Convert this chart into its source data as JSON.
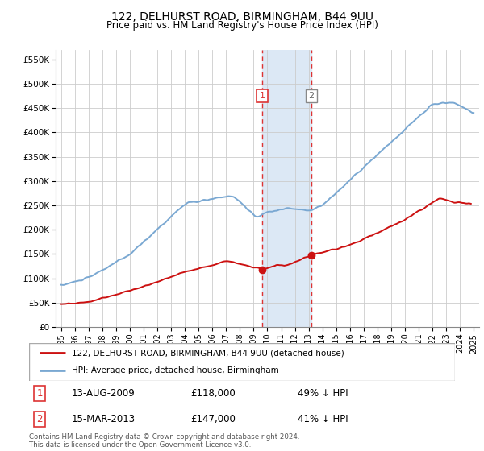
{
  "title": "122, DELHURST ROAD, BIRMINGHAM, B44 9UU",
  "subtitle": "Price paid vs. HM Land Registry's House Price Index (HPI)",
  "hpi_color": "#7aa8d2",
  "price_color": "#cc1111",
  "highlight_color": "#dce8f5",
  "vline_color": "#dd3333",
  "marker_color": "#cc1111",
  "ylim": [
    0,
    570000
  ],
  "yticks": [
    0,
    50000,
    100000,
    150000,
    200000,
    250000,
    300000,
    350000,
    400000,
    450000,
    500000,
    550000
  ],
  "ytick_labels": [
    "£0",
    "£50K",
    "£100K",
    "£150K",
    "£200K",
    "£250K",
    "£300K",
    "£350K",
    "£400K",
    "£450K",
    "£500K",
    "£550K"
  ],
  "sale1_date": 2009.617,
  "sale1_price": 118000,
  "sale1_label": "1",
  "sale2_date": 2013.208,
  "sale2_price": 147000,
  "sale2_label": "2",
  "legend_line1": "122, DELHURST ROAD, BIRMINGHAM, B44 9UU (detached house)",
  "legend_line2": "HPI: Average price, detached house, Birmingham",
  "table_row1": [
    "1",
    "13-AUG-2009",
    "£118,000",
    "49% ↓ HPI"
  ],
  "table_row2": [
    "2",
    "15-MAR-2013",
    "£147,000",
    "41% ↓ HPI"
  ],
  "footer": "Contains HM Land Registry data © Crown copyright and database right 2024.\nThis data is licensed under the Open Government Licence v3.0.",
  "background_color": "#ffffff",
  "grid_color": "#cccccc"
}
